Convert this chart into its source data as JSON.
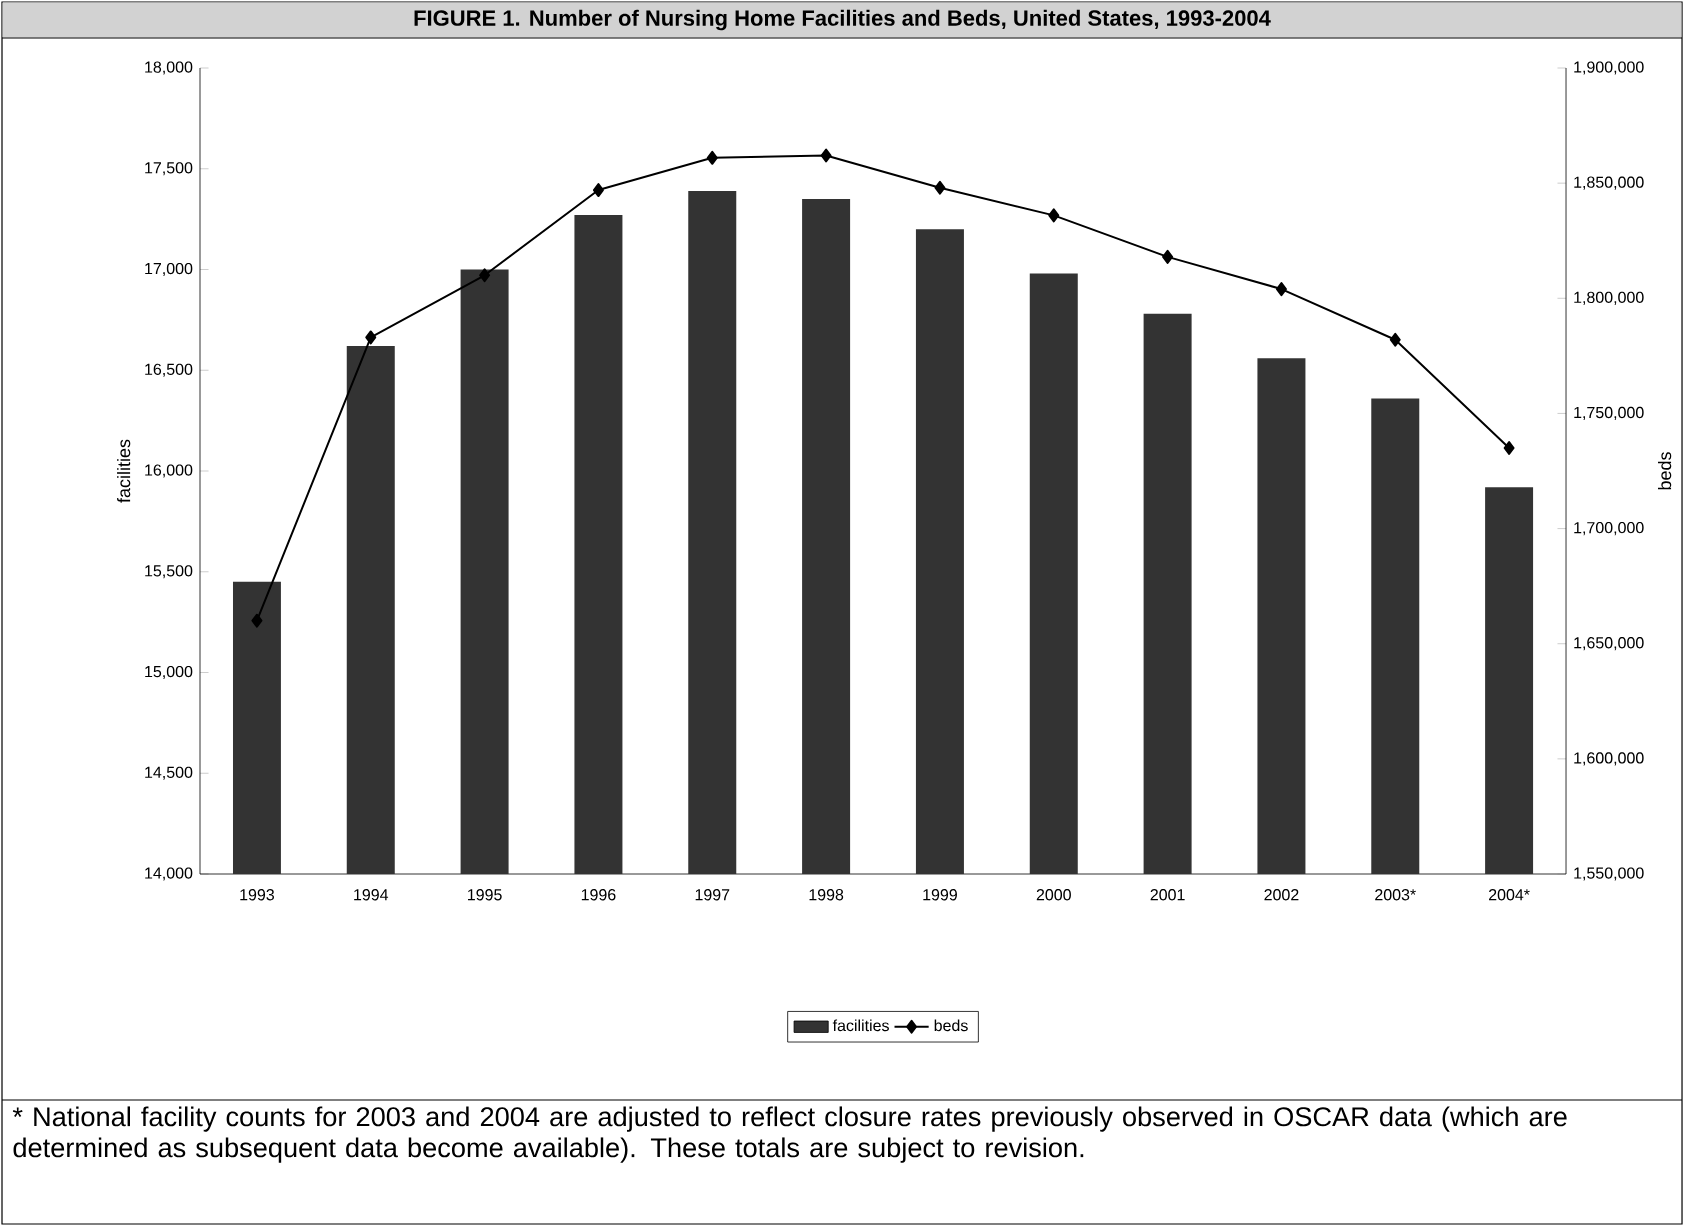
{
  "chart_data": {
    "type": "bar",
    "title": "FIGURE 1. Number of Nursing Home Facilities and Beds, United States, 1993-2004",
    "categories": [
      "1993",
      "1994",
      "1995",
      "1996",
      "1997",
      "1998",
      "1999",
      "2000",
      "2001",
      "2002",
      "2003*",
      "2004*"
    ],
    "series": [
      {
        "name": "facilities",
        "color": "#333333",
        "values": [
          15450,
          16620,
          17000,
          17270,
          17390,
          17350,
          17200,
          16980,
          16780,
          16560,
          16360,
          15920
        ]
      },
      {
        "name": "beds",
        "type": "line",
        "axis": "y2",
        "color": "#000000",
        "values": [
          1660000,
          1783000,
          1810000,
          1847000,
          1861000,
          1862000,
          1848000,
          1836000,
          1818000,
          1804000,
          1782000,
          1735000
        ]
      }
    ],
    "ylabel": "facilities",
    "y2label": "beds",
    "ylim": [
      14000,
      18000
    ],
    "yticks": [
      {
        "value": 14000,
        "label": "14,000"
      },
      {
        "value": 14500,
        "label": "14,500"
      },
      {
        "value": 15000,
        "label": "15,000"
      },
      {
        "value": 15500,
        "label": "15,500"
      },
      {
        "value": 16000,
        "label": "16,000"
      },
      {
        "value": 16500,
        "label": "16,500"
      },
      {
        "value": 17000,
        "label": "17,000"
      },
      {
        "value": 17500,
        "label": "17,500"
      },
      {
        "value": 18000,
        "label": "18,000"
      }
    ],
    "y2lim": [
      1550000,
      1900000
    ],
    "y2ticks": [
      {
        "value": 1550000,
        "label": "1,550,000"
      },
      {
        "value": 1600000,
        "label": "1,600,000"
      },
      {
        "value": 1650000,
        "label": "1,650,000"
      },
      {
        "value": 1700000,
        "label": "1,700,000"
      },
      {
        "value": 1750000,
        "label": "1,750,000"
      },
      {
        "value": 1800000,
        "label": "1,800,000"
      },
      {
        "value": 1850000,
        "label": "1,850,000"
      },
      {
        "value": 1900000,
        "label": "1,900,000"
      }
    ],
    "marker": "diamond",
    "legend": "bottom",
    "grid": false,
    "annotations": [
      "* National facility counts for 2003 and 2004 are adjusted to reflect closure rates previously observed in OSCAR data (which are determined as subsequent data become available). These totals are subject to revision."
    ]
  }
}
